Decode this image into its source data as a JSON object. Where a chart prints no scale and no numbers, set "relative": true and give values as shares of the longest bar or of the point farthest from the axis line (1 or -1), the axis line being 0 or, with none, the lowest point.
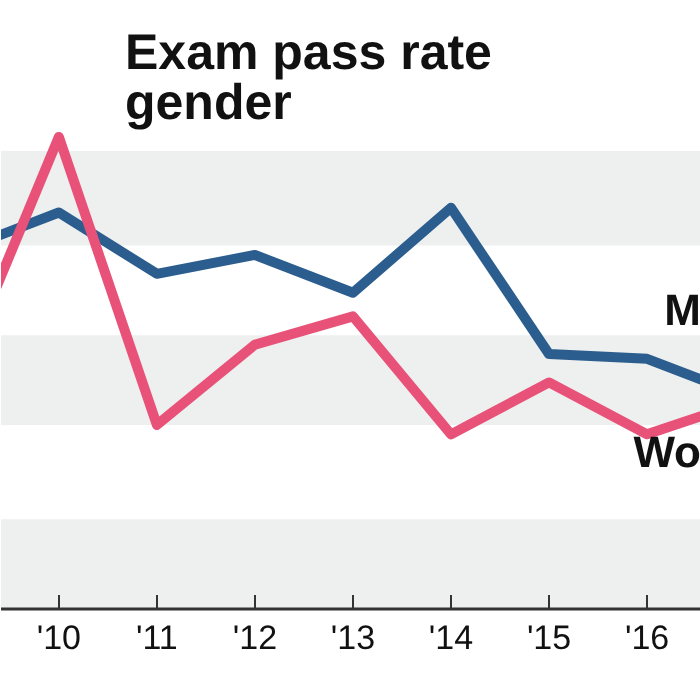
{
  "chart_data": {
    "type": "line",
    "title": "Exam pass rate\ngender",
    "relative": true,
    "categories": [
      null,
      "'10",
      "'11",
      "'12",
      "'13",
      "'14",
      "'15",
      "'16",
      null
    ],
    "series": [
      {
        "name": "M",
        "color": "#2b5d8e",
        "values": [
          0.76,
          0.84,
          0.71,
          0.75,
          0.67,
          0.85,
          0.54,
          0.53,
          0.45
        ]
      },
      {
        "name": "Wo",
        "color": "#e85279",
        "values": [
          0.5,
          1.0,
          0.39,
          0.56,
          0.62,
          0.37,
          0.48,
          0.37,
          0.44
        ]
      }
    ],
    "bands": [
      {
        "axis": "y",
        "from": 0.77,
        "to": 0.97,
        "color": "#eeefef"
      },
      {
        "axis": "y",
        "from": 0.39,
        "to": 0.58,
        "color": "#eeefef"
      },
      {
        "axis": "y",
        "from": 0,
        "to": 0.19,
        "color": "#eeefef"
      }
    ],
    "grid": false,
    "marker": "none",
    "line_style": "solid"
  }
}
